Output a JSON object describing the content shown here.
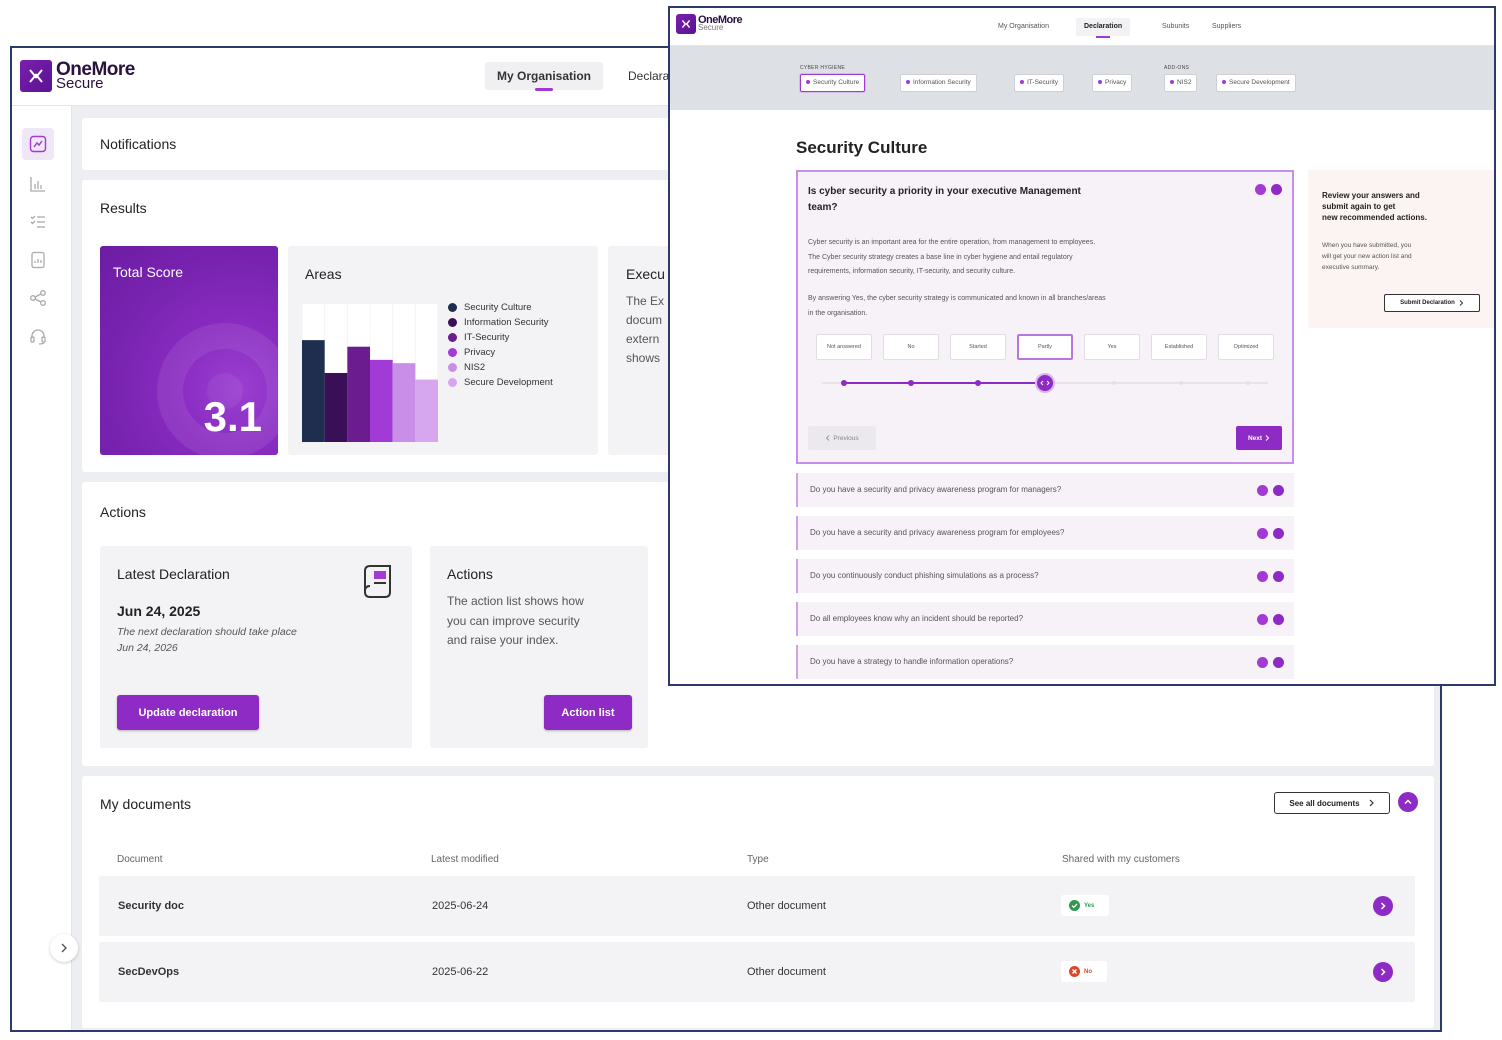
{
  "back": {
    "logo": {
      "line1": "OneMore",
      "line2": "Secure"
    },
    "nav": {
      "tab1": "My Organisation",
      "tab2": "Declara"
    },
    "notifications": {
      "title": "Notifications"
    },
    "results": {
      "title": "Results",
      "total_score_label": "Total Score",
      "total_score_value": "3.1",
      "areas_title": "Areas",
      "exec_title": "Execu",
      "exec_lines": [
        "The Ex",
        "docum",
        "extern",
        "shows"
      ]
    },
    "chart_data": {
      "type": "bar",
      "categories": [
        "Security Culture",
        "Information Security",
        "IT-Security",
        "Privacy",
        "NIS2",
        "Secure Development"
      ],
      "values": [
        3.1,
        2.1,
        2.9,
        2.5,
        2.4,
        1.9
      ],
      "ylim": [
        0,
        4.2
      ],
      "legend": "right",
      "colors": [
        "#1d2e4f",
        "#3b0f57",
        "#6b1d8f",
        "#a23ad6",
        "#c98ee8",
        "#d6a6ee"
      ]
    },
    "actions": {
      "title": "Actions",
      "latest": {
        "title": "Latest Declaration",
        "date": "Jun 24, 2025",
        "next_line1": "The next declaration should take place",
        "next_line2": "Jun 24, 2026",
        "button": "Update declaration"
      },
      "action_card": {
        "title": "Actions",
        "line1": "The action list shows how",
        "line2": "you can improve security",
        "line3": "and raise your index.",
        "button": "Action list"
      }
    },
    "documents": {
      "title": "My documents",
      "see_all": "See all documents",
      "columns": [
        "Document",
        "Latest modified",
        "Type",
        "Shared with my customers"
      ],
      "rows": [
        {
          "name": "Security doc",
          "modified": "2025-06-24",
          "type": "Other document",
          "shared": "Yes"
        },
        {
          "name": "SecDevOps",
          "modified": "2025-06-22",
          "type": "Other document",
          "shared": "No"
        }
      ]
    },
    "colors": {
      "accent": "#8e2bc4",
      "navy": "#2b3a6b"
    }
  },
  "front": {
    "logo": {
      "line1": "OneMore",
      "line2": "Secure"
    },
    "nav": [
      "My Organisation",
      "Declaration",
      "Subunits",
      "Suppliers"
    ],
    "group1_label": "CYBER HYGIENE",
    "group2_label": "ADD-ONS",
    "chips": [
      "Security Culture",
      "Information Security",
      "IT-Security",
      "Privacy",
      "NIS2",
      "Secure Development"
    ],
    "heading": "Security Culture",
    "question": {
      "title_line1": "Is cyber security a priority in your executive Management",
      "title_line2": "team?",
      "desc1_line1": "Cyber security is an important area for the entire operation, from management to employees.",
      "desc1_line2": "The Cyber security strategy creates a base line in cyber hygiene and entail regulatory",
      "desc1_line3": "requirements, information security, IT-security, and security culture.",
      "desc2_line1": "By answering Yes, the cyber security strategy is communicated and known in all branches/areas",
      "desc2_line2": "in the organisation.",
      "options": [
        "Not answered",
        "No",
        "Started",
        "Partly",
        "Yes",
        "Established",
        "Optimized"
      ],
      "selected_level": 4,
      "previous": "Previous",
      "next": "Next"
    },
    "other_questions": [
      "Do you have a security and privacy awareness program for managers?",
      "Do you have a security and privacy awareness program for employees?",
      "Do you continuously conduct phishing simulations as a process?",
      "Do all employees know why an incident should be reported?",
      "Do you have a strategy to handle information operations?"
    ],
    "review": {
      "title_line1": "Review your answers and",
      "title_line2": "submit again to get",
      "title_line3": "new recommended actions.",
      "text_line1": "When you have submitted, you",
      "text_line2": "will get your new action list and",
      "text_line3": "executive summary.",
      "button": "Submit Declaration"
    }
  }
}
